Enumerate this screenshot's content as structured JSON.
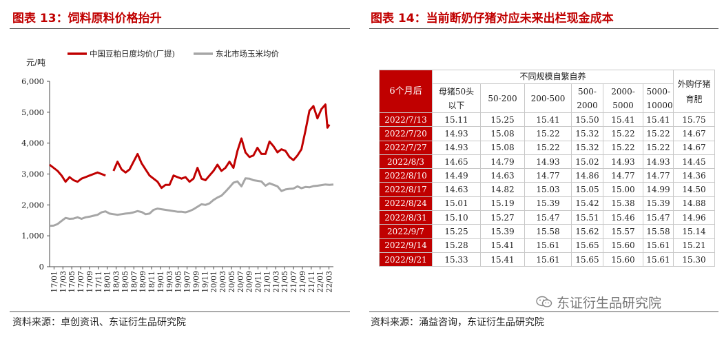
{
  "left": {
    "title": "图表 13：饲料原料价格抬升",
    "source": "资料来源：卓创资讯、东证衍生品研究院",
    "chart_data": {
      "type": "line",
      "ylabel": "元/吨",
      "ylim": [
        0,
        6000
      ],
      "yticks": [
        "0",
        "1,000",
        "2,000",
        "3,000",
        "4,000",
        "5,000",
        "6,000"
      ],
      "xticks": [
        "17/01",
        "17/03",
        "17/05",
        "17/07",
        "17/09",
        "17/11",
        "18/01",
        "18/03",
        "18/05",
        "18/07",
        "18/09",
        "18/11",
        "19/01",
        "19/03",
        "19/05",
        "19/07",
        "19/09",
        "19/11",
        "20/01",
        "20/03",
        "20/05",
        "20/07",
        "20/09",
        "20/11",
        "21/01",
        "21/03",
        "21/05",
        "21/07",
        "21/09",
        "21/11",
        "22/01",
        "22/03"
      ],
      "grid": false,
      "legend_position": "top",
      "series": [
        {
          "name": "中国豆粕日度均价(厂提)",
          "color": "#c00000",
          "x_month_index": [
            0,
            1,
            2,
            3,
            4,
            5,
            6,
            7,
            8,
            9,
            10,
            11,
            12,
            13,
            14,
            15,
            16,
            17,
            18,
            19,
            20,
            21,
            22,
            23,
            24,
            25,
            26,
            27,
            28,
            29,
            30,
            31,
            32,
            33,
            34,
            35,
            36,
            37,
            38,
            39,
            40,
            41,
            42,
            43,
            44,
            45,
            46,
            47,
            48,
            49,
            50,
            51,
            52,
            53,
            54,
            55,
            56,
            57,
            58,
            59,
            60,
            61,
            62,
            63,
            64,
            65,
            66,
            67,
            68,
            69,
            69.5,
            70,
            70.3,
            70.7,
            71
          ],
          "values": [
            3300,
            3200,
            3100,
            2950,
            2750,
            2900,
            2800,
            2750,
            2850,
            2900,
            2950,
            3000,
            3050,
            3000,
            2950,
            null,
            3100,
            3400,
            3150,
            3050,
            3150,
            3400,
            3650,
            3350,
            3150,
            2950,
            2850,
            2750,
            2550,
            2650,
            2650,
            2950,
            2900,
            2850,
            2900,
            2750,
            2850,
            3200,
            2850,
            2800,
            2950,
            3100,
            3300,
            3100,
            3200,
            3400,
            3200,
            3750,
            4150,
            3700,
            3550,
            3600,
            3850,
            3650,
            3650,
            4050,
            3900,
            3700,
            3800,
            3750,
            3550,
            3450,
            3600,
            3800,
            4400,
            5050,
            5200,
            4800,
            5100,
            5250,
            4500,
            4600,
            null,
            null,
            null
          ],
          "break_after_index": 14
        },
        {
          "name": "东北市场玉米均价",
          "color": "#a6a6a6",
          "x_month_index": [
            0,
            1,
            2,
            3,
            4,
            5,
            6,
            7,
            8,
            9,
            10,
            11,
            12,
            13,
            14,
            15,
            16,
            17,
            18,
            19,
            20,
            21,
            22,
            23,
            24,
            25,
            26,
            27,
            28,
            29,
            30,
            31,
            32,
            33,
            34,
            35,
            36,
            37,
            38,
            39,
            40,
            41,
            42,
            43,
            44,
            45,
            46,
            47,
            48,
            49,
            50,
            51,
            52,
            53,
            54,
            55,
            56,
            57,
            58,
            59,
            60,
            61,
            62,
            63,
            64,
            65,
            66,
            67,
            68,
            69,
            70,
            71
          ],
          "values": [
            1320,
            1330,
            1380,
            1480,
            1580,
            1550,
            1560,
            1600,
            1550,
            1600,
            1620,
            1650,
            1680,
            1760,
            1790,
            1720,
            1700,
            1680,
            1700,
            1720,
            1730,
            1760,
            1800,
            1770,
            1700,
            1720,
            1840,
            1880,
            1860,
            1840,
            1820,
            1800,
            1780,
            1780,
            1760,
            1800,
            1860,
            1940,
            2020,
            2000,
            2050,
            2160,
            2240,
            2300,
            2430,
            2570,
            2720,
            2760,
            2600,
            2860,
            2850,
            2800,
            2780,
            2760,
            2620,
            2700,
            2650,
            2600,
            2450,
            2500,
            2520,
            2530,
            2600,
            2540,
            2580,
            2570,
            2610,
            2620,
            2640,
            2660,
            2650,
            2660
          ]
        }
      ]
    }
  },
  "right": {
    "title": "图表 14：当前断奶仔猪对应未来出栏现金成本",
    "source": "资料来源：涌益咨询，东证衍生品研究院",
    "table": {
      "row_header": "6个月后",
      "group_header": "不同规模自繁自养",
      "last_header": "外购仔猪育肥",
      "columns": [
        "母猪50头以下",
        "50-200",
        "200-500",
        "500-2000",
        "2000-5000",
        "5000-10000"
      ],
      "rows": [
        {
          "date": "2022/7/13",
          "values": [
            "15.11",
            "15.25",
            "15.41",
            "15.50",
            "15.41",
            "15.41",
            "15.75"
          ]
        },
        {
          "date": "2022/7/20",
          "values": [
            "14.93",
            "15.08",
            "15.22",
            "15.32",
            "15.22",
            "15.22",
            "14.67"
          ]
        },
        {
          "date": "2022/7/27",
          "values": [
            "14.93",
            "15.08",
            "15.22",
            "15.32",
            "15.22",
            "15.22",
            "14.67"
          ]
        },
        {
          "date": "2022/8/3",
          "values": [
            "14.65",
            "14.79",
            "14.93",
            "15.02",
            "14.93",
            "14.93",
            "14.45"
          ]
        },
        {
          "date": "2022/8/10",
          "values": [
            "14.49",
            "14.63",
            "14.77",
            "14.86",
            "14.77",
            "14.77",
            "14.36"
          ]
        },
        {
          "date": "2022/8/17",
          "values": [
            "14.63",
            "14.82",
            "15.03",
            "15.05",
            "15.00",
            "14.99",
            "14.50"
          ]
        },
        {
          "date": "2022/8/24",
          "values": [
            "15.01",
            "15.19",
            "15.39",
            "15.42",
            "15.38",
            "15.39",
            "14.88"
          ]
        },
        {
          "date": "2022/8/31",
          "values": [
            "15.10",
            "15.27",
            "15.47",
            "15.51",
            "15.46",
            "15.47",
            "14.96"
          ]
        },
        {
          "date": "2022/9/7",
          "values": [
            "15.25",
            "15.39",
            "15.58",
            "15.62",
            "15.57",
            "15.58",
            "15.14"
          ]
        },
        {
          "date": "2022/9/14",
          "values": [
            "15.28",
            "15.41",
            "15.61",
            "15.65",
            "15.60",
            "15.61",
            "15.21"
          ]
        },
        {
          "date": "2022/9/21",
          "values": [
            "15.33",
            "15.41",
            "15.61",
            "15.65",
            "15.60",
            "15.61",
            "15.30"
          ]
        }
      ]
    }
  },
  "watermark": "东证衍生品研究院"
}
